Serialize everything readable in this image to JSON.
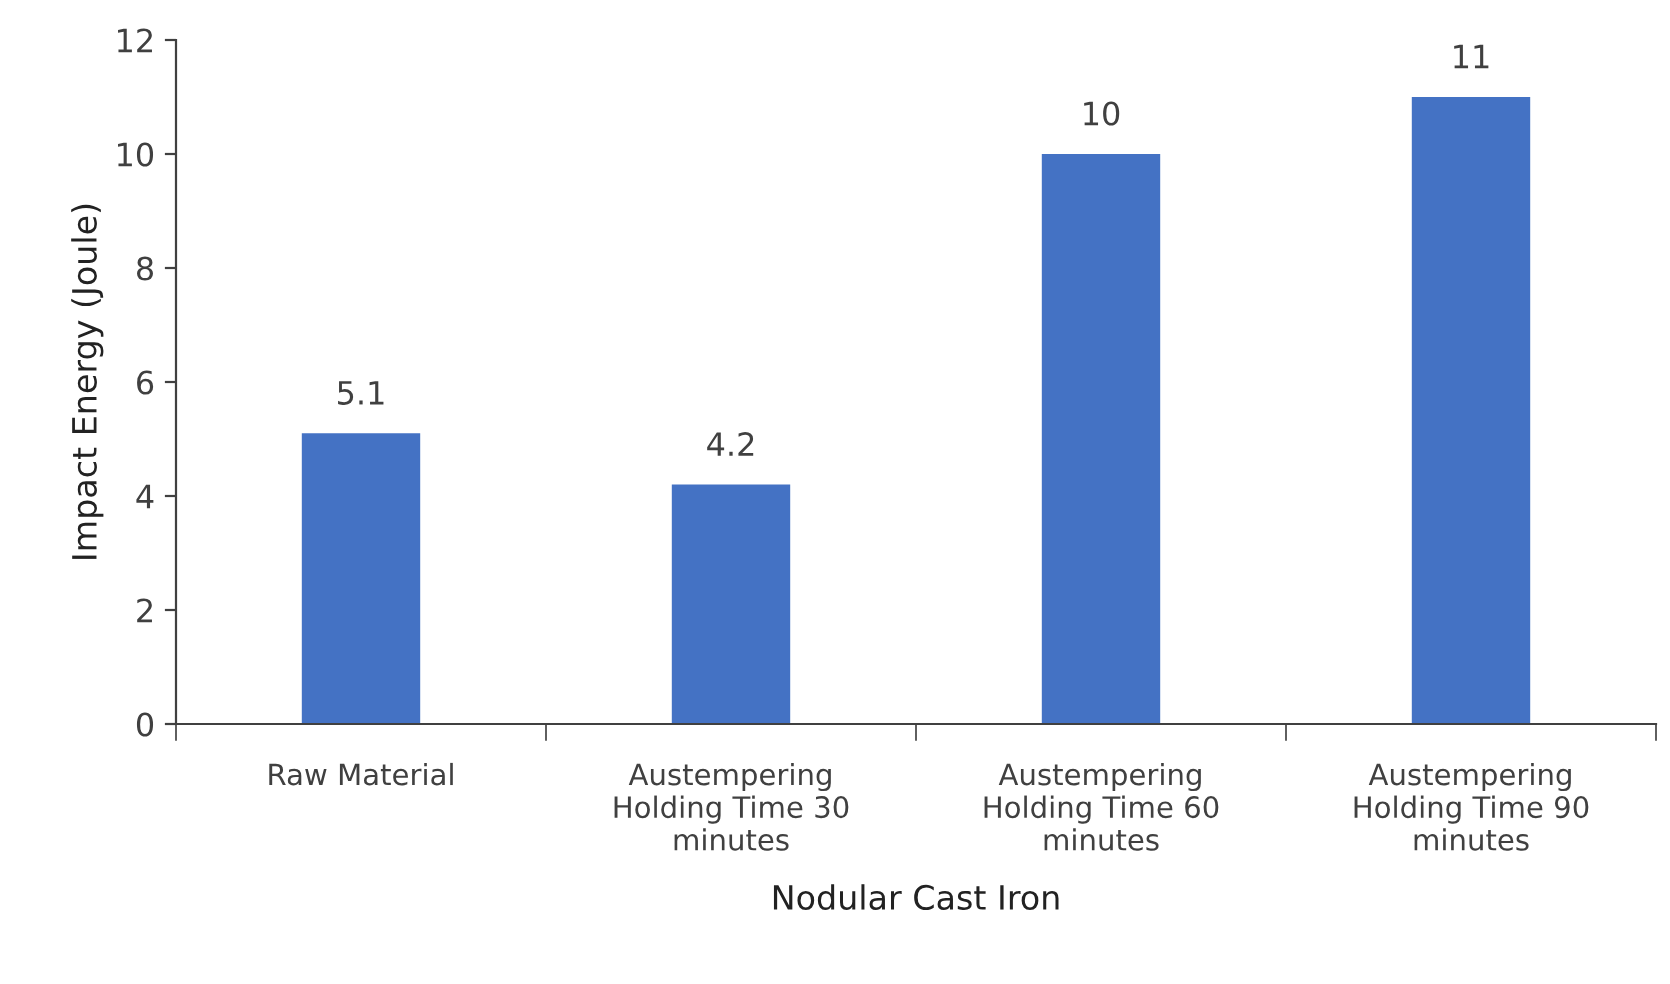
{
  "chart_data": {
    "type": "bar",
    "xlabel": "Nodular Cast Iron",
    "ylabel": "Impact Energy (Joule)",
    "categories": [
      "Raw Material",
      "Austempering\nHolding Time 30\nminutes",
      "Austempering\nHolding Time 60\nminutes",
      "Austempering\nHolding Time 90\nminutes"
    ],
    "values": [
      5.1,
      4.2,
      10,
      11
    ],
    "color": "#4472c4",
    "ylim": [
      0,
      12
    ],
    "yticks": [
      0,
      2,
      4,
      6,
      8,
      10,
      12
    ],
    "grid": false,
    "data_labels": true
  }
}
